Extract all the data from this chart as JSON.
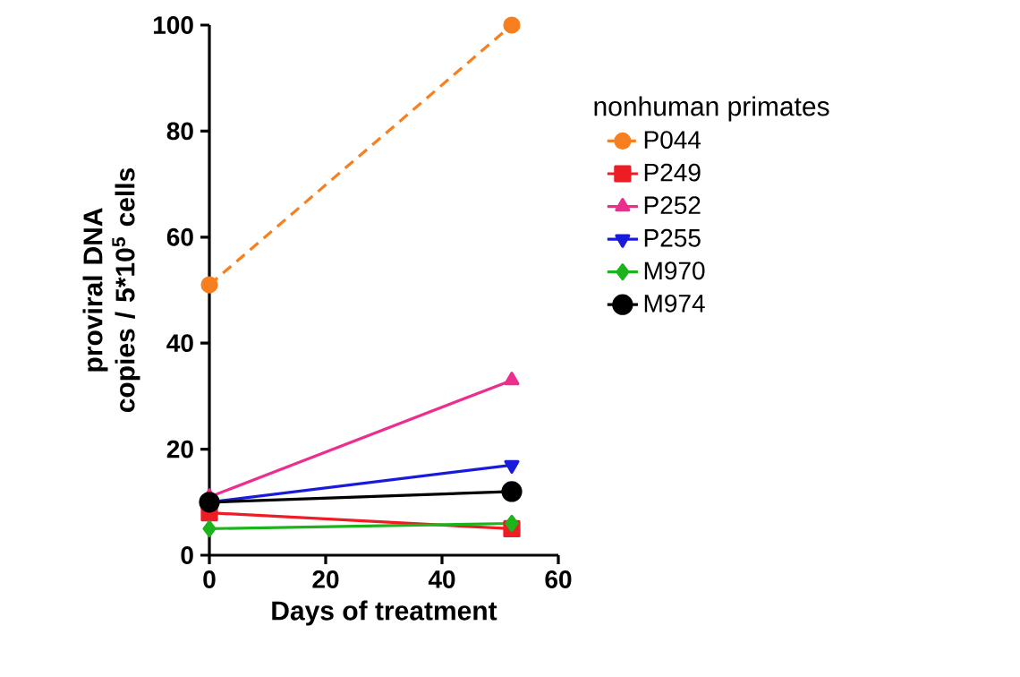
{
  "chart_data": {
    "type": "line",
    "xlabel": "Days of treatment",
    "ylabel": "proviral DNA copies / 5*10$^{5}$ cells",
    "legend_title": "nonhuman primates",
    "legend": "right",
    "grid": false,
    "xlim": [
      0,
      60
    ],
    "xticks": [
      0,
      20,
      40,
      60
    ],
    "ylim": [
      0,
      100
    ],
    "yticks": [
      0,
      20,
      40,
      60,
      80,
      100
    ],
    "x": [
      0,
      52
    ],
    "series": [
      {
        "name": "P044",
        "color": "#f77f1f",
        "values": [
          51,
          100
        ],
        "marker": "circle",
        "line_style": "dashed"
      },
      {
        "name": "P249",
        "color": "#ee1c24",
        "values": [
          8,
          5
        ],
        "marker": "square",
        "line_style": "solid"
      },
      {
        "name": "P252",
        "color": "#ec2f8f",
        "values": [
          11,
          33
        ],
        "marker": "triangle",
        "line_style": "solid"
      },
      {
        "name": "P255",
        "color": "#1a1adc",
        "values": [
          10,
          17
        ],
        "marker": "triangle down",
        "line_style": "solid"
      },
      {
        "name": "M970",
        "color": "#1db31d",
        "values": [
          5,
          6
        ],
        "marker": "diamond",
        "line_style": "solid"
      },
      {
        "name": "M974",
        "color": "#000000",
        "values": [
          10,
          12
        ],
        "marker": "circle",
        "line_style": "solid"
      }
    ]
  }
}
